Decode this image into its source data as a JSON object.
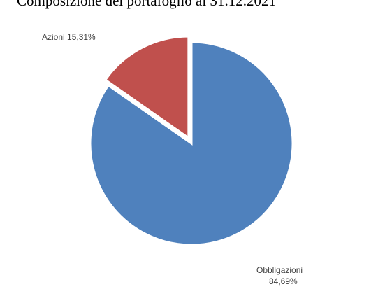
{
  "chart_data": {
    "type": "pie",
    "title": "Composizione del portafoglio al 31.12.2021",
    "slices": [
      {
        "label": "Obbligazioni",
        "value_label": "84,69%",
        "value": 84.69,
        "color": "#4f81bd"
      },
      {
        "label": "Azioni",
        "value_label": "15,31%",
        "value": 15.31,
        "color": "#c0504d"
      }
    ],
    "labels": {
      "azioni": "Azioni 15,31%",
      "obbligazioni_name": "Obbligazioni",
      "obbligazioni_value": "84,69%"
    },
    "legend": "none",
    "exploded_slice": "Azioni"
  }
}
